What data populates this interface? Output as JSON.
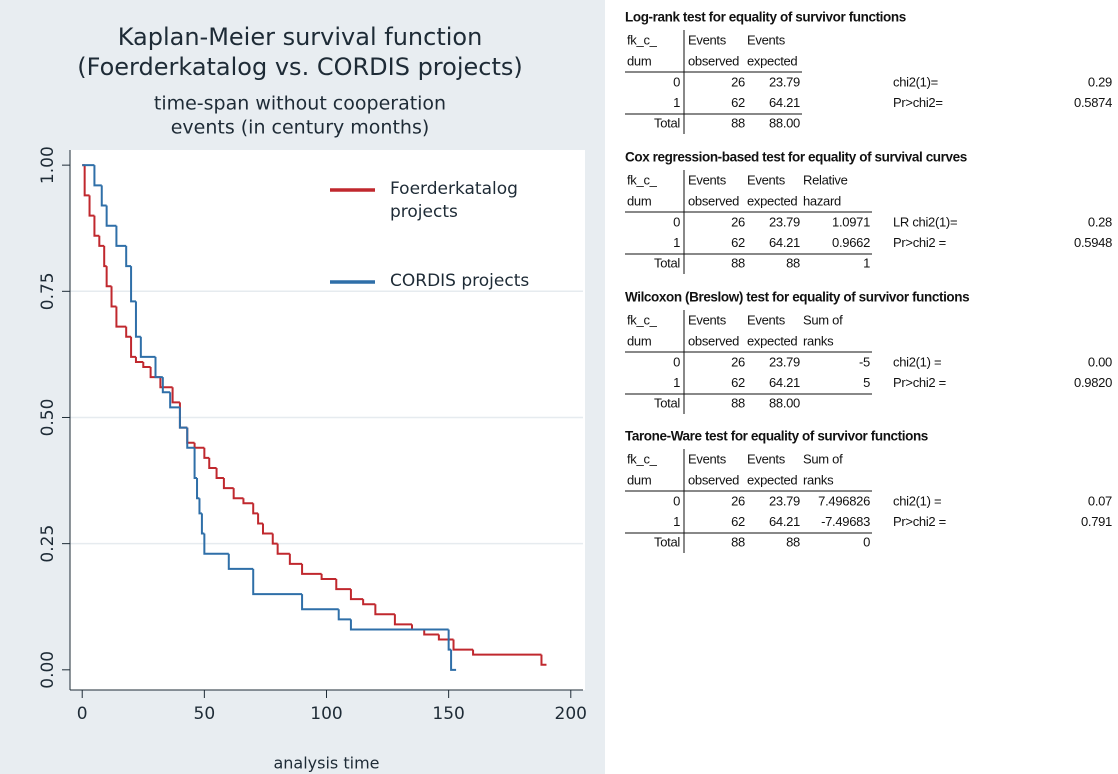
{
  "chart_data": {
    "type": "line",
    "title": [
      "Kaplan-Meier survival function",
      "(Foerderkatalog vs. CORDIS projects)"
    ],
    "subtitle": [
      "time-span without cooperation",
      "events (in century months)"
    ],
    "x_label": "analysis time",
    "xlim": [
      -5,
      205
    ],
    "ylim": [
      -0.04,
      1.03
    ],
    "xticks": [
      0,
      50,
      100,
      150,
      200
    ],
    "yticks": [
      {
        "value": 0,
        "label": "0.00"
      },
      {
        "value": 0.25,
        "label": "0.25"
      },
      {
        "value": 0.5,
        "label": "0.50"
      },
      {
        "value": 0.75,
        "label": "0.75"
      },
      {
        "value": 1,
        "label": "1.00"
      }
    ],
    "grid": true,
    "step": true,
    "legend": "upper right",
    "series": [
      {
        "name": "Foerderkatalog projects",
        "color": "#c0282e",
        "x": [
          0,
          1,
          3,
          5,
          7,
          9,
          10,
          12,
          14,
          18,
          20,
          22,
          25,
          28,
          32,
          37,
          40,
          43,
          46,
          50,
          52,
          55,
          58,
          62,
          66,
          70,
          72,
          74,
          78,
          80,
          85,
          90,
          98,
          104,
          110,
          115,
          120,
          128,
          135,
          140,
          146,
          152,
          160,
          188
        ],
        "values": [
          1.0,
          0.94,
          0.9,
          0.86,
          0.84,
          0.8,
          0.76,
          0.72,
          0.68,
          0.66,
          0.62,
          0.61,
          0.6,
          0.58,
          0.56,
          0.53,
          0.48,
          0.45,
          0.44,
          0.42,
          0.4,
          0.38,
          0.36,
          0.34,
          0.33,
          0.31,
          0.29,
          0.27,
          0.25,
          0.23,
          0.21,
          0.19,
          0.18,
          0.16,
          0.14,
          0.13,
          0.11,
          0.09,
          0.08,
          0.07,
          0.06,
          0.04,
          0.03,
          0.01
        ]
      },
      {
        "name": "CORDIS projects",
        "color": "#2f6fa8",
        "x": [
          0,
          5,
          8,
          10,
          14,
          18,
          20,
          22,
          24,
          30,
          33,
          36,
          40,
          43,
          46,
          47,
          48,
          49,
          50,
          60,
          70,
          90,
          105,
          110,
          150,
          151
        ],
        "values": [
          1.0,
          0.96,
          0.92,
          0.88,
          0.84,
          0.8,
          0.73,
          0.66,
          0.62,
          0.58,
          0.55,
          0.52,
          0.48,
          0.44,
          0.38,
          0.34,
          0.31,
          0.27,
          0.23,
          0.2,
          0.15,
          0.12,
          0.1,
          0.08,
          0.04,
          0.0
        ]
      }
    ]
  },
  "tables": [
    {
      "title": "Log-rank test for equality of survivor functions",
      "header": [
        [
          "fk_c_",
          "Events",
          "Events"
        ],
        [
          "dum",
          "observed",
          "expected"
        ]
      ],
      "rows": [
        [
          "0",
          "26",
          "23.79"
        ],
        [
          "1",
          "62",
          "64.21"
        ],
        [
          "Total",
          "88",
          "88.00"
        ]
      ],
      "stats": [
        [
          "chi2(1)=",
          "0.29"
        ],
        [
          "Pr>chi2=",
          "0.5874"
        ]
      ]
    },
    {
      "title": "Cox regression-based test for equality of survival curves",
      "header": [
        [
          "fk_c_",
          "Events",
          "Events",
          "Relative"
        ],
        [
          "dum",
          "observed",
          "expected",
          "hazard"
        ]
      ],
      "rows": [
        [
          "0",
          "26",
          "23.79",
          "1.0971"
        ],
        [
          "1",
          "62",
          "64.21",
          "0.9662"
        ],
        [
          "Total",
          "88",
          "88",
          "1"
        ]
      ],
      "stats": [
        [
          "LR chi2(1)=",
          "0.28"
        ],
        [
          "Pr>chi2 =",
          "0.5948"
        ]
      ]
    },
    {
      "title": "Wilcoxon (Breslow) test for equality of survivor functions",
      "header": [
        [
          "fk_c_",
          "Events",
          "Events",
          "Sum of"
        ],
        [
          "dum",
          "observed",
          "expected",
          "ranks"
        ]
      ],
      "rows": [
        [
          "0",
          "26",
          "23.79",
          "-5"
        ],
        [
          "1",
          "62",
          "64.21",
          "5"
        ],
        [
          "Total",
          "88",
          "88.00"
        ]
      ],
      "stats": [
        [
          "chi2(1) =",
          "0.00"
        ],
        [
          "Pr>chi2 =",
          "0.9820"
        ]
      ]
    },
    {
      "title": "Tarone-Ware test for equality of survivor functions",
      "header": [
        [
          "fk_c_",
          "Events",
          "Events",
          "Sum of"
        ],
        [
          "dum",
          "observed",
          "expected",
          "ranks"
        ]
      ],
      "rows": [
        [
          "0",
          "26",
          "23.79",
          "7.496826"
        ],
        [
          "1",
          "62",
          "64.21",
          "-7.49683"
        ],
        [
          "Total",
          "88",
          "88",
          "0"
        ]
      ],
      "stats": [
        [
          "chi2(1) =",
          "0.07"
        ],
        [
          "Pr>chi2 =",
          "0.791"
        ]
      ]
    }
  ]
}
